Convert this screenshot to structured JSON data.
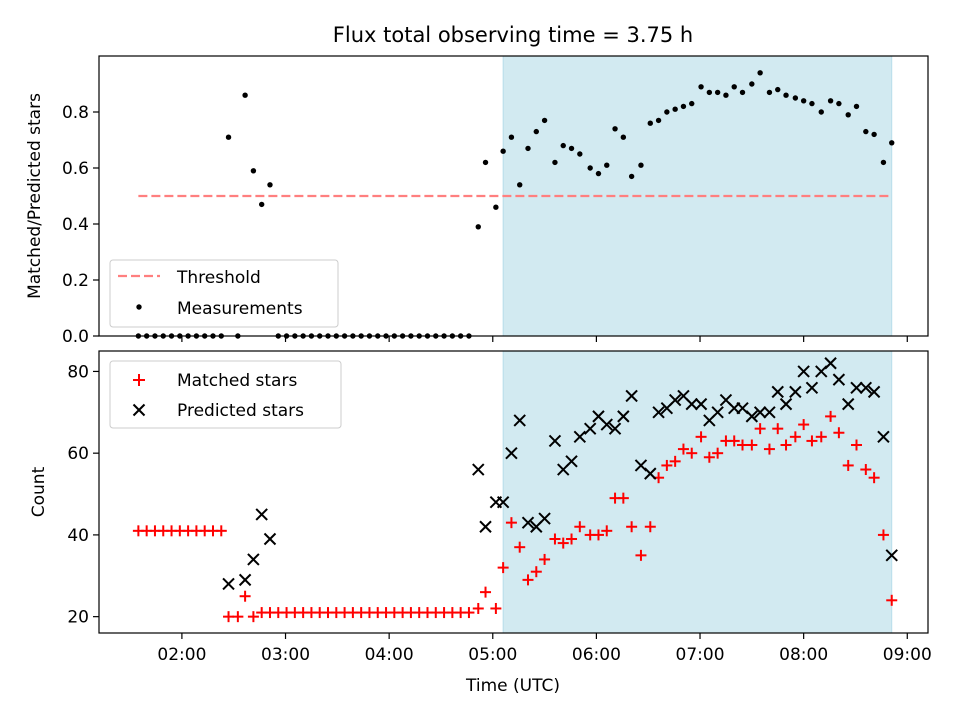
{
  "title": "Flux total observing time = 3.75 h",
  "colors": {
    "highlight": "#add8e6",
    "threshold": "#ff7f7f",
    "measurements": "#000000",
    "matched": "#ff0000",
    "predicted": "#000000"
  },
  "chart_data": [
    {
      "type": "scatter",
      "ylabel": "Matched/Predicted stars",
      "ylim": [
        0,
        1.0
      ],
      "yticks": [
        "0.0",
        "0.2",
        "0.4",
        "0.6",
        "0.8"
      ],
      "yticks_values": [
        0,
        0.2,
        0.4,
        0.6,
        0.8
      ],
      "xlim_hours": [
        1.2,
        9.2
      ],
      "shaded_span_hours": [
        5.1,
        8.85
      ],
      "legend_position": "lower-left",
      "threshold": {
        "name": "Threshold",
        "value": 0.5,
        "x_range_hours": [
          1.58,
          8.85
        ],
        "style": "dashed"
      },
      "series": [
        {
          "name": "Measurements",
          "marker": "dot",
          "x_hours": [
            1.58,
            1.66,
            1.74,
            1.82,
            1.9,
            1.98,
            2.06,
            2.14,
            2.22,
            2.3,
            2.38,
            2.45,
            2.54,
            2.61,
            2.69,
            2.77,
            2.85,
            2.93,
            3.01,
            3.09,
            3.17,
            3.25,
            3.33,
            3.41,
            3.49,
            3.57,
            3.65,
            3.73,
            3.81,
            3.89,
            3.97,
            4.05,
            4.13,
            4.21,
            4.29,
            4.37,
            4.45,
            4.53,
            4.61,
            4.69,
            4.77,
            4.86,
            4.93,
            5.03,
            5.1,
            5.18,
            5.26,
            5.34,
            5.42,
            5.5,
            5.6,
            5.68,
            5.76,
            5.84,
            5.94,
            6.02,
            6.1,
            6.18,
            6.26,
            6.34,
            6.43,
            6.52,
            6.6,
            6.68,
            6.76,
            6.84,
            6.92,
            7.01,
            7.09,
            7.17,
            7.25,
            7.33,
            7.41,
            7.5,
            7.58,
            7.67,
            7.75,
            7.83,
            7.92,
            8.0,
            8.08,
            8.17,
            8.26,
            8.34,
            8.43,
            8.51,
            8.6,
            8.68,
            8.77,
            8.85
          ],
          "y": [
            0,
            0,
            0,
            0,
            0,
            0,
            0,
            0,
            0,
            0,
            0,
            0.71,
            0,
            0.86,
            0.59,
            0.47,
            0.54,
            0,
            0,
            0,
            0,
            0,
            0,
            0,
            0,
            0,
            0,
            0,
            0,
            0,
            0,
            0,
            0,
            0,
            0,
            0,
            0,
            0,
            0,
            0,
            0,
            0.39,
            0.62,
            0.46,
            0.66,
            0.71,
            0.54,
            0.67,
            0.73,
            0.77,
            0.62,
            0.68,
            0.67,
            0.65,
            0.6,
            0.58,
            0.61,
            0.74,
            0.71,
            0.57,
            0.61,
            0.76,
            0.77,
            0.8,
            0.81,
            0.82,
            0.83,
            0.89,
            0.87,
            0.87,
            0.86,
            0.89,
            0.87,
            0.9,
            0.94,
            0.87,
            0.88,
            0.86,
            0.85,
            0.84,
            0.83,
            0.8,
            0.84,
            0.83,
            0.79,
            0.82,
            0.73,
            0.72,
            0.62,
            0.69
          ]
        }
      ]
    },
    {
      "type": "scatter",
      "xlabel": "Time (UTC)",
      "ylabel": "Count",
      "ylim": [
        16,
        85
      ],
      "yticks": [
        "20",
        "40",
        "60",
        "80"
      ],
      "yticks_values": [
        20,
        40,
        60,
        80
      ],
      "xticks": [
        "02:00",
        "03:00",
        "04:00",
        "05:00",
        "06:00",
        "07:00",
        "08:00",
        "09:00"
      ],
      "xticks_values": [
        2,
        3,
        4,
        5,
        6,
        7,
        8,
        9
      ],
      "xlim_hours": [
        1.2,
        9.2
      ],
      "shaded_span_hours": [
        5.1,
        8.85
      ],
      "legend_position": "upper-left",
      "series": [
        {
          "name": "Matched stars",
          "marker": "plus",
          "x_hours": [
            1.58,
            1.66,
            1.74,
            1.82,
            1.9,
            1.98,
            2.06,
            2.14,
            2.22,
            2.3,
            2.38,
            2.45,
            2.54,
            2.61,
            2.69,
            2.77,
            2.85,
            2.93,
            3.01,
            3.09,
            3.17,
            3.25,
            3.33,
            3.41,
            3.49,
            3.57,
            3.65,
            3.73,
            3.81,
            3.89,
            3.97,
            4.05,
            4.13,
            4.21,
            4.29,
            4.37,
            4.45,
            4.53,
            4.61,
            4.69,
            4.77,
            4.86,
            4.93,
            5.03,
            5.1,
            5.18,
            5.26,
            5.34,
            5.42,
            5.5,
            5.6,
            5.68,
            5.76,
            5.84,
            5.94,
            6.02,
            6.1,
            6.18,
            6.26,
            6.34,
            6.43,
            6.52,
            6.6,
            6.68,
            6.76,
            6.84,
            6.92,
            7.01,
            7.09,
            7.17,
            7.25,
            7.33,
            7.41,
            7.5,
            7.58,
            7.67,
            7.75,
            7.83,
            7.92,
            8.0,
            8.08,
            8.17,
            8.26,
            8.34,
            8.43,
            8.51,
            8.6,
            8.68,
            8.77,
            8.85
          ],
          "y": [
            41,
            41,
            41,
            41,
            41,
            41,
            41,
            41,
            41,
            41,
            41,
            20,
            20,
            25,
            20,
            21,
            21,
            21,
            21,
            21,
            21,
            21,
            21,
            21,
            21,
            21,
            21,
            21,
            21,
            21,
            21,
            21,
            21,
            21,
            21,
            21,
            21,
            21,
            21,
            21,
            21,
            22,
            26,
            22,
            32,
            43,
            37,
            29,
            31,
            34,
            39,
            38,
            39,
            42,
            40,
            40,
            41,
            49,
            49,
            42,
            35,
            42,
            54,
            57,
            58,
            61,
            60,
            64,
            59,
            60,
            63,
            63,
            62,
            62,
            66,
            61,
            66,
            62,
            64,
            67,
            63,
            64,
            69,
            65,
            57,
            62,
            56,
            54,
            40,
            24
          ]
        },
        {
          "name": "Predicted stars",
          "marker": "x",
          "x_hours": [
            2.45,
            2.61,
            2.69,
            2.77,
            2.85,
            4.86,
            4.93,
            5.03,
            5.1,
            5.18,
            5.26,
            5.34,
            5.42,
            5.5,
            5.6,
            5.68,
            5.76,
            5.84,
            5.94,
            6.02,
            6.1,
            6.18,
            6.26,
            6.34,
            6.43,
            6.52,
            6.6,
            6.68,
            6.76,
            6.84,
            6.92,
            7.01,
            7.09,
            7.17,
            7.25,
            7.33,
            7.41,
            7.5,
            7.58,
            7.67,
            7.75,
            7.83,
            7.92,
            8.0,
            8.08,
            8.17,
            8.26,
            8.34,
            8.43,
            8.51,
            8.6,
            8.68,
            8.77,
            8.85
          ],
          "y": [
            28,
            29,
            34,
            45,
            39,
            56,
            42,
            48,
            48,
            60,
            68,
            43,
            42,
            44,
            63,
            56,
            58,
            64,
            66,
            69,
            67,
            66,
            69,
            74,
            57,
            55,
            70,
            71,
            73,
            74,
            72,
            72,
            68,
            70,
            73,
            71,
            71,
            69,
            70,
            70,
            75,
            72,
            75,
            80,
            76,
            80,
            82,
            78,
            72,
            76,
            76,
            75,
            64,
            35
          ]
        }
      ]
    }
  ]
}
